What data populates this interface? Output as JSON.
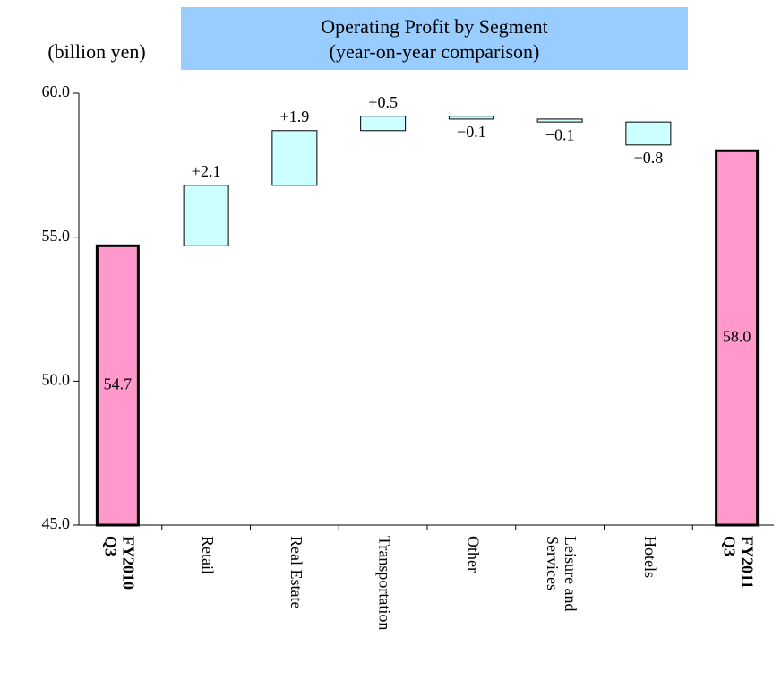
{
  "chart_data": {
    "type": "waterfall",
    "title": "Operating Profit by Segment",
    "subtitle": "(year-on-year comparison)",
    "y_label": "(billion yen)",
    "categories": [
      [
        "FY2010",
        "Q3"
      ],
      [
        "Retail"
      ],
      [
        "Real Estate"
      ],
      [
        "Transportation"
      ],
      [
        "Other"
      ],
      [
        "Leisure and",
        "Services"
      ],
      [
        "Hotels"
      ],
      [
        "FY2011",
        "Q3"
      ]
    ],
    "values": [
      54.7,
      2.1,
      1.9,
      0.5,
      -0.1,
      -0.1,
      -0.8,
      58.0
    ],
    "value_labels": [
      "54.7",
      "+2.1",
      "+1.9",
      "+0.5",
      "−0.1",
      "−0.1",
      "−0.8",
      "58.0"
    ],
    "totals": [
      true,
      false,
      false,
      false,
      false,
      false,
      false,
      true
    ],
    "total_color": "#ff99cc",
    "change_color": "#ccffff",
    "title_background": "#99ccff",
    "ylim": [
      45,
      60
    ],
    "yticks": [
      {
        "value": 45,
        "label": "45.0"
      },
      {
        "value": 50,
        "label": "50.0"
      },
      {
        "value": 55,
        "label": "55.0"
      },
      {
        "value": 60,
        "label": "60.0"
      }
    ]
  }
}
